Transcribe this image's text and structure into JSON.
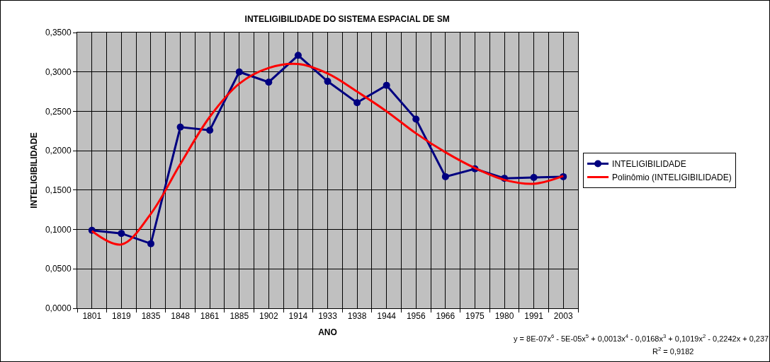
{
  "chart_data": {
    "type": "line",
    "title": "INTELIGIBILIDADE DO SISTEMA ESPACIAL DE SM",
    "xlabel": "ANO",
    "ylabel": "INTELIGIBILIDADE",
    "categories": [
      "1801",
      "1819",
      "1835",
      "1848",
      "1861",
      "1885",
      "1902",
      "1914",
      "1933",
      "1938",
      "1944",
      "1956",
      "1966",
      "1975",
      "1980",
      "1991",
      "2003"
    ],
    "series": [
      {
        "name": "INTELIGIBILIDADE",
        "color": "#000080",
        "marker": "circle",
        "values": [
          0.099,
          0.095,
          0.082,
          0.23,
          0.226,
          0.3,
          0.287,
          0.321,
          0.288,
          0.261,
          0.283,
          0.24,
          0.167,
          0.177,
          0.165,
          0.166,
          0.167
        ]
      },
      {
        "name": "Polinômio (INTELIGIBILIDADE)",
        "color": "#ff0000",
        "marker": "none",
        "values": [
          0.098,
          0.081,
          0.12,
          0.183,
          0.243,
          0.285,
          0.305,
          0.31,
          0.298,
          0.275,
          0.25,
          0.222,
          0.198,
          0.178,
          0.163,
          0.158,
          0.168
        ]
      }
    ],
    "ylim": [
      0,
      0.35
    ],
    "yticks": [
      {
        "value": 0,
        "label": "0,0000"
      },
      {
        "value": 0.05,
        "label": "0,0500"
      },
      {
        "value": 0.1,
        "label": "0,1000"
      },
      {
        "value": 0.15,
        "label": "0,1500"
      },
      {
        "value": 0.2,
        "label": "0,2000"
      },
      {
        "value": 0.25,
        "label": "0,2500"
      },
      {
        "value": 0.3,
        "label": "0,3000"
      },
      {
        "value": 0.35,
        "label": "0,3500"
      }
    ],
    "grid": true,
    "legend": "right",
    "line_style": "solid",
    "annotations": [
      "y = 8E-07x$^{6}$ - 5E-05x$^{5}$ + 0,0013x$^{4}$ - 0,0168x$^{3}$ + 0,1019x$^{2}$ - 0,2242x + 0,237",
      "R$^{2}$ = 0,9182"
    ]
  }
}
